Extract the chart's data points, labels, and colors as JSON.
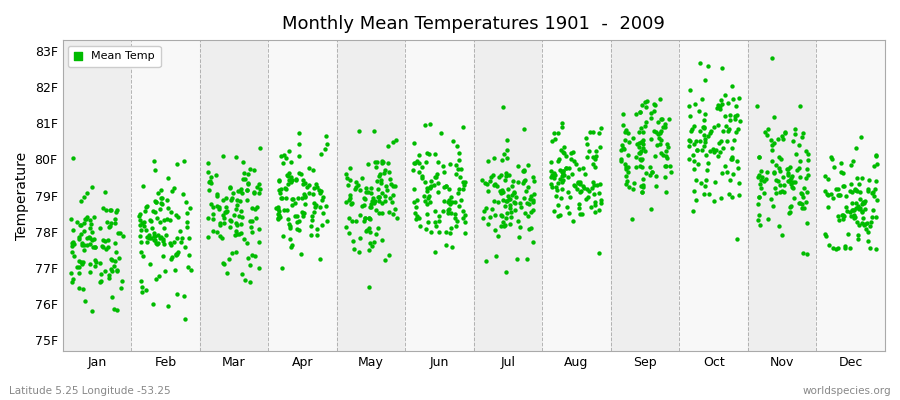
{
  "title": "Monthly Mean Temperatures 1901  -  2009",
  "ylabel": "Temperature",
  "xlabel_bottom_left": "Latitude 5.25 Longitude -53.25",
  "xlabel_bottom_right": "worldspecies.org",
  "ytick_labels": [
    "75F",
    "76F",
    "77F",
    "78F",
    "79F",
    "80F",
    "81F",
    "82F",
    "83F"
  ],
  "ytick_values": [
    75,
    76,
    77,
    78,
    79,
    80,
    81,
    82,
    83
  ],
  "ylim": [
    74.7,
    83.3
  ],
  "months": [
    "Jan",
    "Feb",
    "Mar",
    "Apr",
    "May",
    "Jun",
    "Jul",
    "Aug",
    "Sep",
    "Oct",
    "Nov",
    "Dec"
  ],
  "xlim": [
    0.0,
    13.0
  ],
  "dot_color": "#00bb00",
  "dot_size": 10,
  "background_color": "#ffffff",
  "band_colors": [
    "#eeeeee",
    "#f8f8f8"
  ],
  "grid_color": "#888888",
  "seed": 12345,
  "n_years": 109,
  "month_data": {
    "1": {
      "mean": 77.6,
      "std": 0.75
    },
    "2": {
      "mean": 78.0,
      "std": 0.85
    },
    "3": {
      "mean": 78.5,
      "std": 0.85
    },
    "4": {
      "mean": 79.0,
      "std": 0.75
    },
    "5": {
      "mean": 78.9,
      "std": 0.75
    },
    "6": {
      "mean": 79.0,
      "std": 0.7
    },
    "7": {
      "mean": 79.0,
      "std": 0.7
    },
    "8": {
      "mean": 79.5,
      "std": 0.75
    },
    "9": {
      "mean": 80.2,
      "std": 0.8
    },
    "10": {
      "mean": 80.6,
      "std": 0.85
    },
    "11": {
      "mean": 79.5,
      "std": 0.8
    },
    "12": {
      "mean": 78.7,
      "std": 0.75
    }
  },
  "title_fontsize": 13,
  "label_fontsize": 9,
  "ylabel_fontsize": 10,
  "annotation_fontsize": 7.5,
  "annotation_color": "#888888"
}
